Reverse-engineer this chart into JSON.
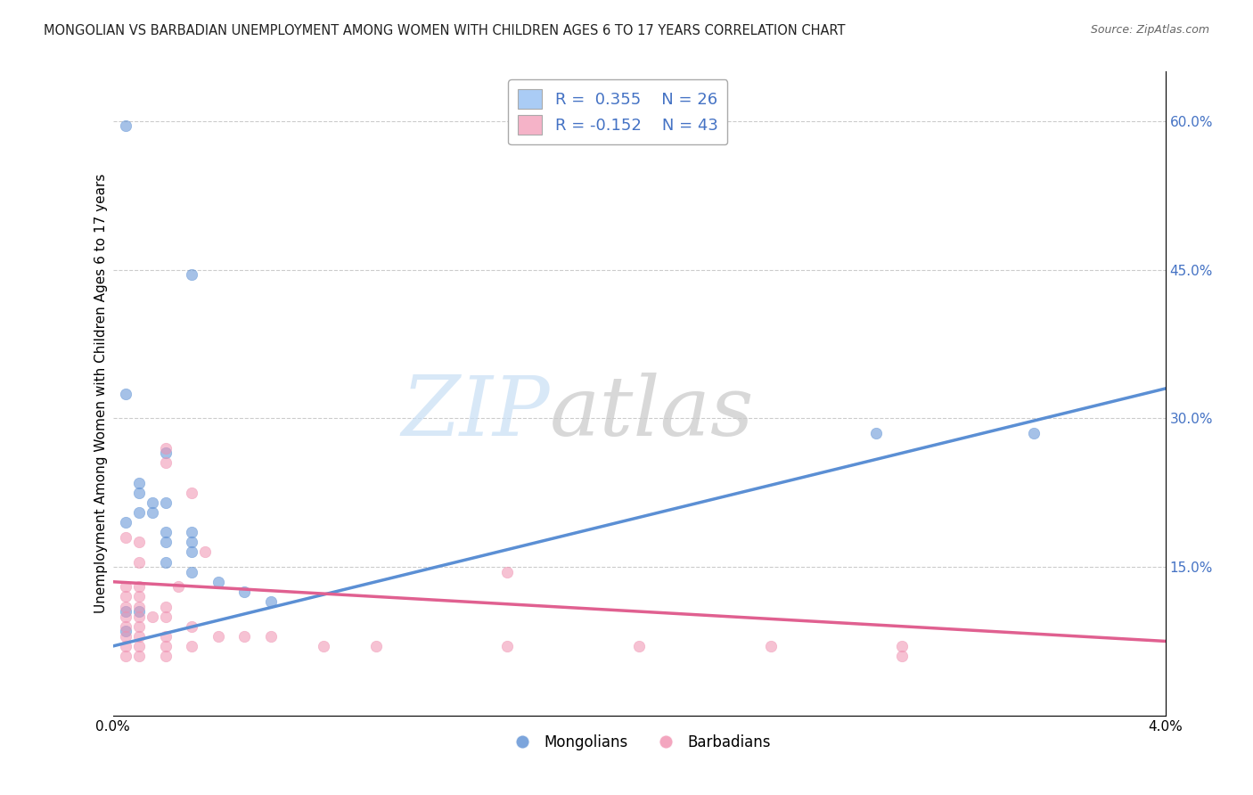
{
  "title": "MONGOLIAN VS BARBADIAN UNEMPLOYMENT AMONG WOMEN WITH CHILDREN AGES 6 TO 17 YEARS CORRELATION CHART",
  "source": "Source: ZipAtlas.com",
  "ylabel": "Unemployment Among Women with Children Ages 6 to 17 years",
  "xlim": [
    0.0,
    0.04
  ],
  "ylim": [
    0.0,
    0.65
  ],
  "x_ticks": [
    0.0,
    0.01,
    0.02,
    0.03,
    0.04
  ],
  "x_tick_labels": [
    "0.0%",
    "",
    "",
    "",
    "4.0%"
  ],
  "y_ticks_right": [
    0.0,
    0.15,
    0.3,
    0.45,
    0.6
  ],
  "y_tick_labels_right": [
    "",
    "15.0%",
    "30.0%",
    "45.0%",
    "60.0%"
  ],
  "legend_labels": [
    "Mongolians",
    "Barbadians"
  ],
  "legend_colors": [
    "#aaccf5",
    "#f5b3c8"
  ],
  "r_mongolian": 0.355,
  "n_mongolian": 26,
  "r_barbadian": -0.152,
  "n_barbadian": 43,
  "blue_color": "#5b8fd4",
  "pink_color": "#f090b0",
  "stat_color": "#4472c4",
  "background_color": "#ffffff",
  "grid_color": "#cccccc",
  "mongolian_scatter": [
    [
      0.0005,
      0.595
    ],
    [
      0.003,
      0.445
    ],
    [
      0.0005,
      0.325
    ],
    [
      0.002,
      0.265
    ],
    [
      0.001,
      0.235
    ],
    [
      0.001,
      0.225
    ],
    [
      0.0015,
      0.215
    ],
    [
      0.002,
      0.215
    ],
    [
      0.001,
      0.205
    ],
    [
      0.0015,
      0.205
    ],
    [
      0.0005,
      0.195
    ],
    [
      0.002,
      0.185
    ],
    [
      0.003,
      0.185
    ],
    [
      0.002,
      0.175
    ],
    [
      0.003,
      0.175
    ],
    [
      0.002,
      0.155
    ],
    [
      0.003,
      0.165
    ],
    [
      0.003,
      0.145
    ],
    [
      0.004,
      0.135
    ],
    [
      0.005,
      0.125
    ],
    [
      0.006,
      0.115
    ],
    [
      0.0005,
      0.105
    ],
    [
      0.001,
      0.105
    ],
    [
      0.0005,
      0.085
    ],
    [
      0.029,
      0.285
    ],
    [
      0.035,
      0.285
    ]
  ],
  "barbadian_scatter": [
    [
      0.002,
      0.27
    ],
    [
      0.002,
      0.255
    ],
    [
      0.003,
      0.225
    ],
    [
      0.0005,
      0.18
    ],
    [
      0.001,
      0.175
    ],
    [
      0.0035,
      0.165
    ],
    [
      0.001,
      0.155
    ],
    [
      0.015,
      0.145
    ],
    [
      0.0005,
      0.13
    ],
    [
      0.001,
      0.13
    ],
    [
      0.0025,
      0.13
    ],
    [
      0.0005,
      0.12
    ],
    [
      0.001,
      0.12
    ],
    [
      0.0005,
      0.11
    ],
    [
      0.001,
      0.11
    ],
    [
      0.002,
      0.11
    ],
    [
      0.0005,
      0.1
    ],
    [
      0.001,
      0.1
    ],
    [
      0.0015,
      0.1
    ],
    [
      0.002,
      0.1
    ],
    [
      0.0005,
      0.09
    ],
    [
      0.001,
      0.09
    ],
    [
      0.003,
      0.09
    ],
    [
      0.0005,
      0.08
    ],
    [
      0.001,
      0.08
    ],
    [
      0.002,
      0.08
    ],
    [
      0.004,
      0.08
    ],
    [
      0.005,
      0.08
    ],
    [
      0.006,
      0.08
    ],
    [
      0.0005,
      0.07
    ],
    [
      0.001,
      0.07
    ],
    [
      0.002,
      0.07
    ],
    [
      0.003,
      0.07
    ],
    [
      0.008,
      0.07
    ],
    [
      0.01,
      0.07
    ],
    [
      0.015,
      0.07
    ],
    [
      0.02,
      0.07
    ],
    [
      0.025,
      0.07
    ],
    [
      0.03,
      0.07
    ],
    [
      0.0005,
      0.06
    ],
    [
      0.001,
      0.06
    ],
    [
      0.002,
      0.06
    ],
    [
      0.03,
      0.06
    ]
  ],
  "line_mongolian": [
    [
      0.0,
      0.07
    ],
    [
      0.04,
      0.33
    ]
  ],
  "line_barbadian": [
    [
      0.0,
      0.135
    ],
    [
      0.04,
      0.075
    ]
  ]
}
